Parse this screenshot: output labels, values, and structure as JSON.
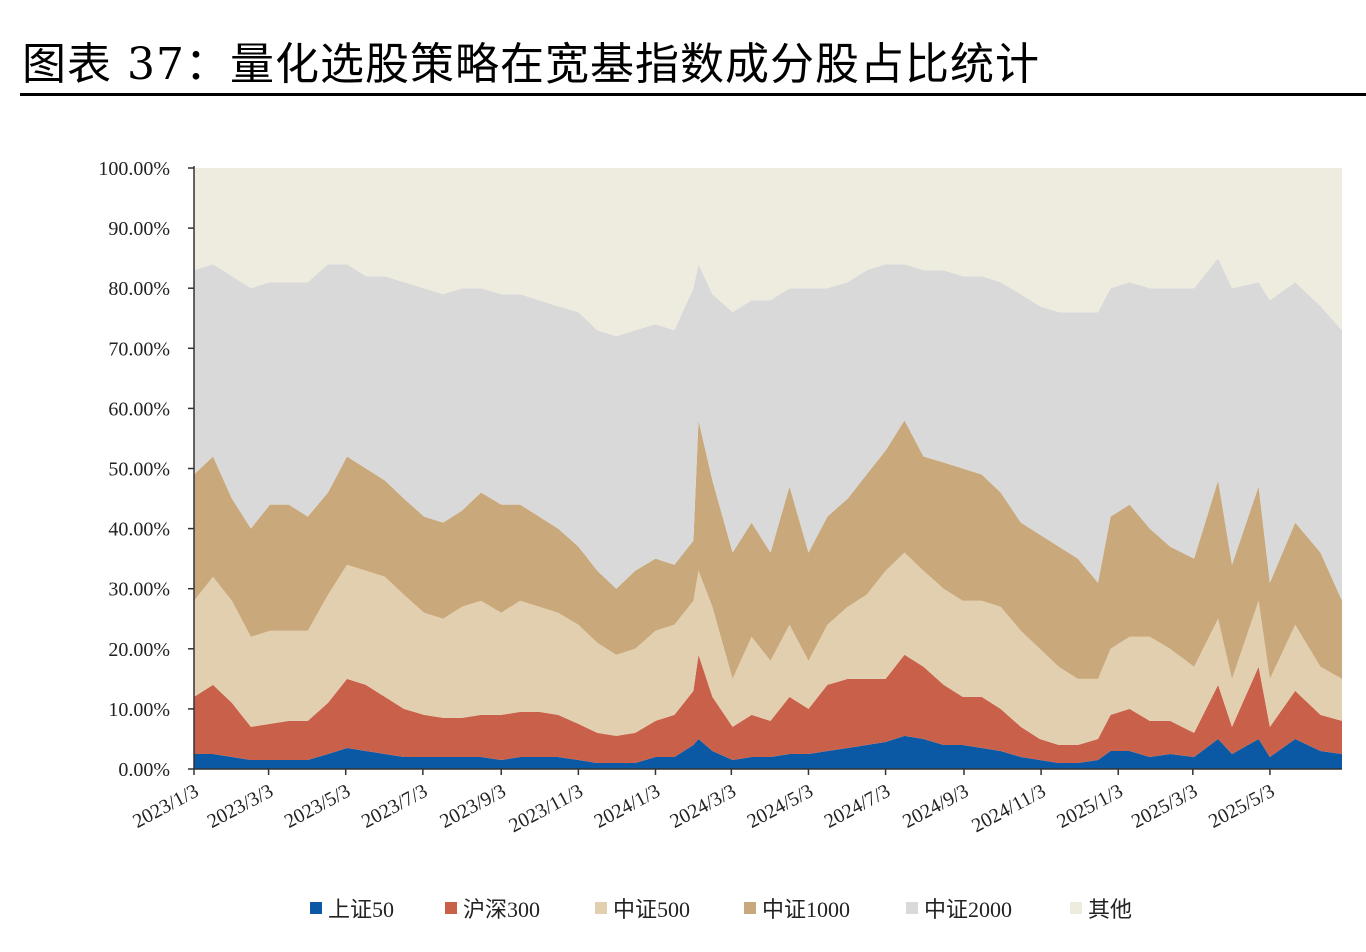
{
  "title": "图表 37：量化选股策略在宽基指数成分股占比统计",
  "chart_data": {
    "type": "area",
    "stacked": true,
    "title": "图表 37：量化选股策略在宽基指数成分股占比统计",
    "xlabel": "",
    "ylabel": "",
    "ylim": [
      0,
      100
    ],
    "xlim": [
      "2023-01-03",
      "2025-06-29"
    ],
    "y_ticks": [
      "0.00%",
      "10.00%",
      "20.00%",
      "30.00%",
      "40.00%",
      "50.00%",
      "60.00%",
      "70.00%",
      "80.00%",
      "90.00%",
      "100.00%"
    ],
    "x_ticks": [
      "2023/1/3",
      "2023/3/3",
      "2023/5/3",
      "2023/7/3",
      "2023/9/3",
      "2023/11/3",
      "2024/1/3",
      "2024/3/3",
      "2024/5/3",
      "2024/7/3",
      "2024/9/3",
      "2024/11/3",
      "2025/1/3",
      "2025/3/3",
      "2025/5/3"
    ],
    "grid": false,
    "legend_position": "bottom",
    "x": [
      "2023-01-03",
      "2023-01-18",
      "2023-02-02",
      "2023-02-17",
      "2023-03-04",
      "2023-03-19",
      "2023-04-03",
      "2023-04-19",
      "2023-05-04",
      "2023-05-19",
      "2023-06-03",
      "2023-06-18",
      "2023-07-04",
      "2023-07-19",
      "2023-08-03",
      "2023-08-18",
      "2023-09-03",
      "2023-09-18",
      "2023-10-03",
      "2023-10-18",
      "2023-11-03",
      "2023-11-18",
      "2023-12-03",
      "2023-12-18",
      "2024-01-03",
      "2024-01-18",
      "2024-02-02",
      "2024-02-06",
      "2024-02-17",
      "2024-03-04",
      "2024-03-19",
      "2024-04-03",
      "2024-04-18",
      "2024-05-03",
      "2024-05-18",
      "2024-06-03",
      "2024-06-18",
      "2024-07-03",
      "2024-07-18",
      "2024-08-02",
      "2024-08-18",
      "2024-09-02",
      "2024-09-17",
      "2024-10-02",
      "2024-10-18",
      "2024-11-02",
      "2024-11-17",
      "2024-12-02",
      "2024-12-18",
      "2024-12-28",
      "2025-01-12",
      "2025-01-28",
      "2025-02-13",
      "2025-03-04",
      "2025-03-23",
      "2025-04-03",
      "2025-04-24",
      "2025-05-03",
      "2025-05-23",
      "2025-06-12",
      "2025-06-29"
    ],
    "series": [
      {
        "name": "上证50",
        "color": "#0b59a4",
        "values": [
          2.5,
          2.5,
          2,
          1.5,
          1.5,
          1.5,
          1.5,
          2.5,
          3.5,
          3,
          2.5,
          2,
          2,
          2,
          2,
          2,
          1.5,
          2,
          2,
          2,
          1.5,
          1,
          1,
          1,
          2,
          2,
          4,
          5,
          3,
          1.5,
          2,
          2,
          2.5,
          2.5,
          3,
          3.5,
          4,
          4.5,
          5.5,
          5,
          4,
          4,
          3.5,
          3,
          2,
          1.5,
          1,
          1,
          1.5,
          3,
          3,
          2,
          2.5,
          2,
          5,
          2.5,
          5,
          2,
          5,
          3,
          2.5
        ]
      },
      {
        "name": "沪深300",
        "color": "#c9614a",
        "values": [
          9.5,
          11.5,
          9,
          5.5,
          6,
          6.5,
          6.5,
          8.5,
          11.5,
          11,
          9.5,
          8,
          7,
          6.5,
          6.5,
          7,
          7.5,
          7.5,
          7.5,
          7,
          6,
          5,
          4.5,
          5,
          6,
          7,
          9,
          14,
          9,
          5.5,
          7,
          6,
          9.5,
          7.5,
          11,
          11.5,
          11,
          10.5,
          13.5,
          12,
          10,
          8,
          8.5,
          7,
          5,
          3.5,
          3,
          3,
          3.5,
          6,
          7,
          6,
          5.5,
          4,
          9,
          4.5,
          12,
          5,
          8,
          6,
          5.5
        ]
      },
      {
        "name": "中证500",
        "color": "#e2cfb0",
        "values": [
          16,
          18,
          17,
          15,
          15.5,
          15,
          15,
          18,
          19,
          19,
          20,
          19,
          17,
          16.5,
          18.5,
          19,
          17,
          18.5,
          17.5,
          17,
          16.5,
          15,
          13.5,
          14,
          15,
          15,
          15,
          14,
          15,
          8,
          13,
          10,
          12,
          8,
          10,
          12,
          14,
          18,
          17,
          16,
          16,
          16,
          16,
          17,
          16,
          15,
          13,
          11,
          10,
          11,
          12,
          14,
          12,
          11,
          11,
          8,
          11,
          8,
          11,
          8,
          7
        ]
      },
      {
        "name": "中证1000",
        "color": "#c9a97b",
        "values": [
          21,
          20,
          17,
          18,
          21,
          21,
          19,
          17,
          18,
          17,
          16,
          16,
          16,
          16,
          16,
          18,
          18,
          16,
          15,
          14,
          13,
          12,
          11,
          13,
          12,
          10,
          10,
          25,
          21,
          21,
          19,
          18,
          23,
          18,
          18,
          18,
          20,
          20,
          22,
          19,
          21,
          22,
          21,
          19,
          18,
          19,
          20,
          20,
          16,
          22,
          22,
          18,
          17,
          18,
          23,
          19,
          19,
          16,
          17,
          19,
          13
        ]
      },
      {
        "name": "中证2000",
        "color": "#d9d9d9",
        "values": [
          34,
          32,
          37,
          40,
          37,
          37,
          39,
          38,
          32,
          32,
          34,
          36,
          38,
          38,
          37,
          34,
          35,
          35,
          36,
          37,
          39,
          40,
          42,
          40,
          39,
          39,
          42,
          26,
          31,
          40,
          37,
          42,
          33,
          44,
          38,
          36,
          34,
          31,
          26,
          31,
          32,
          32,
          33,
          35,
          38,
          38,
          39,
          41,
          45,
          38,
          37,
          40,
          43,
          45,
          37,
          46,
          34,
          47,
          40,
          41,
          45
        ]
      },
      {
        "name": "其他",
        "color": "#eeebdf",
        "values": [
          17,
          16,
          18,
          20,
          19,
          19,
          19,
          16,
          16,
          18,
          18,
          19,
          20,
          21,
          20,
          20,
          21,
          21,
          22,
          23,
          24,
          27,
          28,
          27,
          26,
          27,
          20,
          16,
          21,
          24,
          22,
          22,
          20,
          20,
          20,
          19,
          17,
          16,
          16,
          17,
          17,
          18,
          18,
          19,
          21,
          23,
          24,
          24,
          24,
          20,
          19,
          20,
          20,
          20,
          15,
          20,
          19,
          22,
          19,
          23,
          27
        ]
      }
    ]
  }
}
